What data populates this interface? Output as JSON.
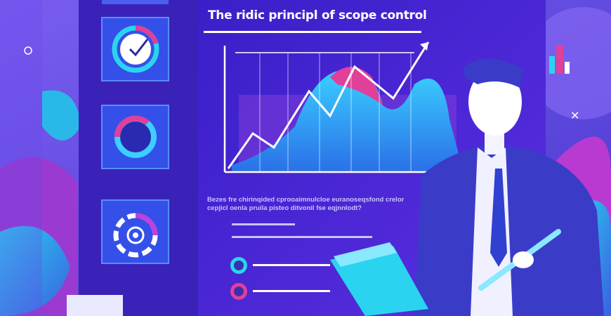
{
  "slide": {
    "title": "The ridic principl of scope control",
    "body_line_1": "Bezes fre chirinqided cprooaimnulcloe euranoseqsfond crelor",
    "body_line_2": "cepjicl oenla pruila pisteo ditvonil fse eqjnnlodt?"
  },
  "colors": {
    "background": "#5a3fd8",
    "screen": "#4a2fd0",
    "panel": "#3a22b8",
    "accent_cyan": "#2ad4f0",
    "accent_magenta": "#e0409a",
    "suit": "#3a3cc8"
  },
  "icons": [
    "clock-icon",
    "donut-ring-icon",
    "target-gear-icon",
    "person-illustration",
    "clipboard-icon",
    "pen-icon",
    "line-chart-icon"
  ]
}
